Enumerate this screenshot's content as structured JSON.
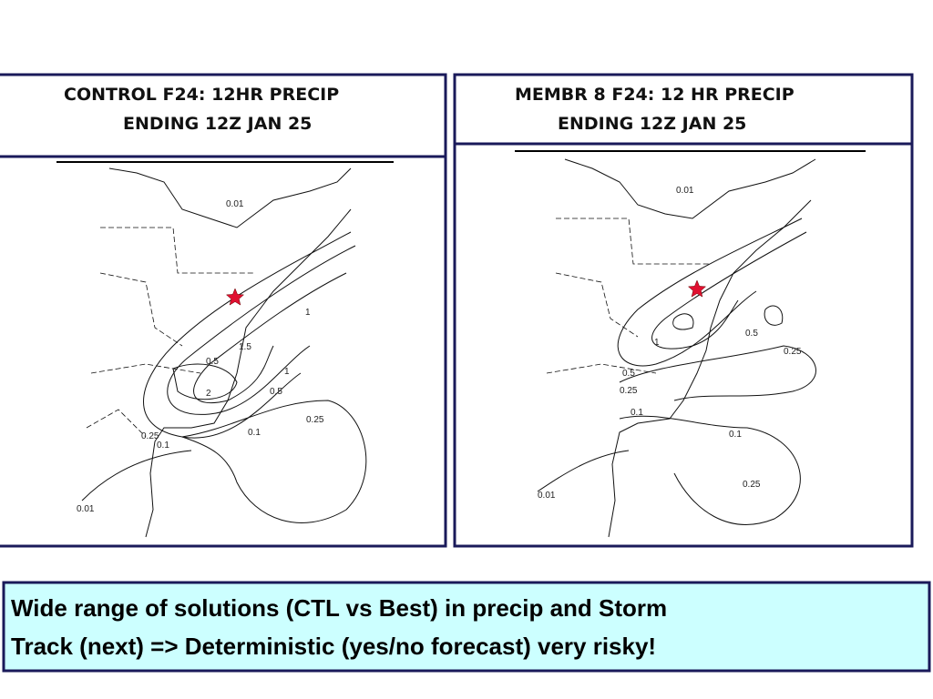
{
  "panels": [
    {
      "title": [
        "CONTROL F24: 12HR PRECIP",
        "ENDING 12Z JAN 25"
      ],
      "contour_labels": [
        "0.01",
        "1",
        "1.5",
        "0.5",
        "1",
        "2",
        "0.5",
        "0.25",
        "0.1",
        "0.25",
        "0.1",
        "0.01"
      ]
    },
    {
      "title": [
        "MEMBR 8 F24: 12 HR PRECIP",
        "ENDING 12Z JAN 25"
      ],
      "contour_labels": [
        "0.01",
        "0.5",
        "0.25",
        "1",
        "0.5",
        "0.25",
        "0.1",
        "0.1",
        "0.25",
        "0.01"
      ]
    }
  ],
  "caption": [
    "Wide range of solutions (CTL vs Best) in precip and Storm",
    "Track (next) => Deterministic (yes/no forecast) very risky!"
  ]
}
